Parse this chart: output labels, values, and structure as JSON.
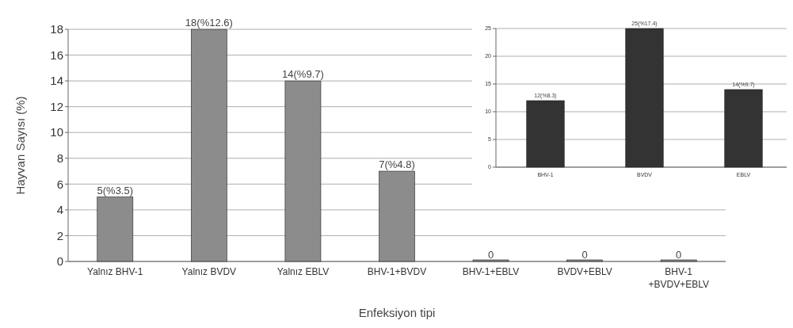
{
  "chart_data": [
    {
      "type": "bar",
      "xlabel": "Enfeksiyon tipi",
      "ylabel": "Hayvan Sayısı (%)",
      "categories": [
        "Yalnız BHV-1",
        "Yalnız BVDV",
        "Yalnız EBLV",
        "BHV-1+BVDV",
        "BHV-1+EBLV",
        "BVDV+EBLV",
        "BHV-1\n+BVDV+EBLV"
      ],
      "values": [
        5,
        18,
        14,
        7,
        0,
        0,
        0
      ],
      "value_labels": [
        "5(%3.5)",
        "18(%12.6)",
        "14(%9.7)",
        "7(%4.8)",
        "0",
        "0",
        "0"
      ],
      "color": "#8c8c8c",
      "ylim": [
        0,
        18
      ],
      "yticks": [
        0,
        2,
        4,
        6,
        8,
        10,
        12,
        14,
        16,
        18
      ],
      "grid": "y"
    },
    {
      "type": "bar",
      "categories": [
        "BHV-1",
        "BVDV",
        "EBLV"
      ],
      "values": [
        12,
        25,
        14
      ],
      "value_labels": [
        "12(%8.3)",
        "25(%17.4)",
        "14(%9.7)"
      ],
      "color": "#333333",
      "ylim": [
        0,
        25
      ],
      "yticks": [
        0,
        5,
        10,
        15,
        20,
        25
      ],
      "grid": "y"
    }
  ]
}
